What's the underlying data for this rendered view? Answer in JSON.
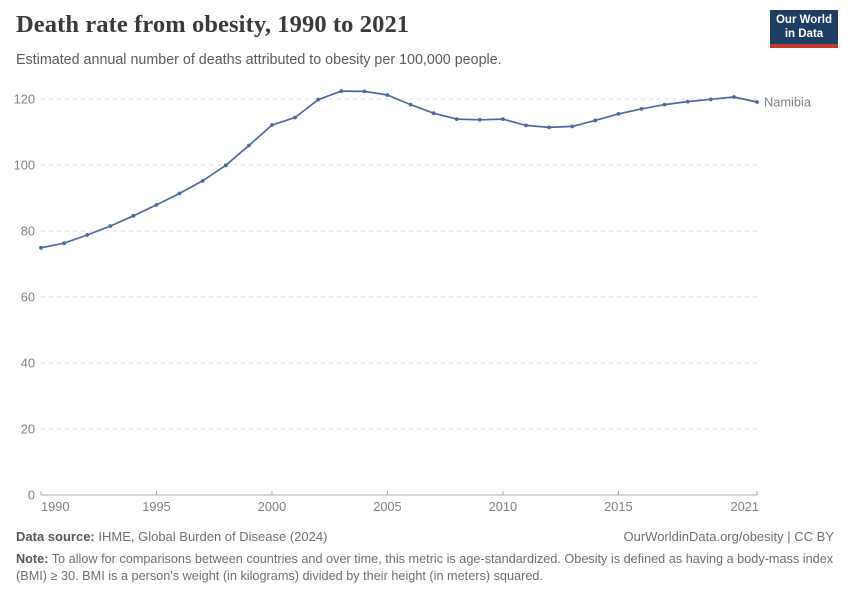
{
  "header": {
    "title": "Death rate from obesity, 1990 to 2021",
    "subtitle": "Estimated annual number of deaths attributed to obesity per 100,000 people.",
    "logo": {
      "line1": "Our World",
      "line2": "in Data",
      "bg_color": "#1d3d63",
      "accent_color": "#c0392b"
    }
  },
  "chart_data": {
    "type": "line",
    "title": "Death rate from obesity, 1990 to 2021",
    "xlabel": "",
    "ylabel": "",
    "xlim": [
      1990,
      2021
    ],
    "ylim": [
      0,
      120
    ],
    "x_ticks": [
      1990,
      1995,
      2000,
      2005,
      2010,
      2015,
      2021
    ],
    "y_ticks": [
      0,
      20,
      40,
      60,
      80,
      100,
      120
    ],
    "grid": "horizontal-dashed",
    "legend_position": "end-of-line-label",
    "colors": {
      "gridline": "#dcdcdc",
      "axis": "#a9a9a9",
      "tick_label": "#828282"
    },
    "series": [
      {
        "name": "Namibia",
        "color": "#4c6a9f",
        "x": [
          1990,
          1991,
          1992,
          1993,
          1994,
          1995,
          1996,
          1997,
          1998,
          1999,
          2000,
          2001,
          2002,
          2003,
          2004,
          2005,
          2006,
          2007,
          2008,
          2009,
          2010,
          2011,
          2012,
          2013,
          2014,
          2015,
          2016,
          2017,
          2018,
          2019,
          2020,
          2021
        ],
        "values": [
          74.9,
          76.3,
          78.8,
          81.5,
          84.6,
          87.9,
          91.4,
          95.2,
          99.9,
          105.9,
          112.1,
          114.4,
          119.8,
          122.4,
          122.3,
          121.2,
          118.3,
          115.7,
          113.9,
          113.7,
          113.9,
          112.0,
          111.4,
          111.7,
          113.5,
          115.5,
          117.0,
          118.3,
          119.2,
          119.9,
          120.6,
          119.1
        ]
      }
    ]
  },
  "footer": {
    "datasource_label": "Data source:",
    "datasource_value": " IHME, Global Burden of Disease (2024)",
    "link": "OurWorldinData.org/obesity | CC BY",
    "note_label": "Note:",
    "note_value": " To allow for comparisons between countries and over time, this metric is age-standardized. Obesity is defined as having a body-mass index (BMI) ≥ 30. BMI is a person's weight (in kilograms) divided by their height (in meters) squared."
  }
}
